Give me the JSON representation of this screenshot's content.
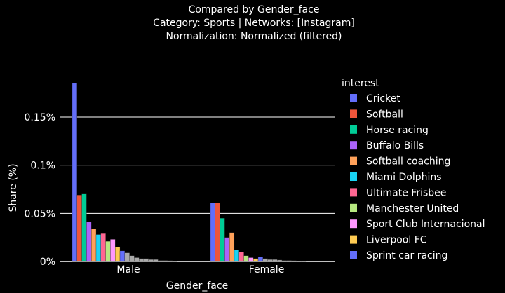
{
  "chart_data": {
    "type": "bar",
    "barmode": "group",
    "title": [
      "Compared by Gender_face",
      "Category: Sports | Networks: [Instagram]",
      "Normalization: Normalized (filtered)"
    ],
    "xlabel": "Gender_face",
    "ylabel": "Share (%)",
    "categories": [
      "Male",
      "Female"
    ],
    "ylim": [
      0,
      0.19
    ],
    "yticks": [
      0,
      0.05,
      0.1,
      0.15
    ],
    "ytick_labels": [
      "0%",
      "0.05%",
      "0.1%",
      "0.15%"
    ],
    "legend_title": "interest",
    "legend_position": "right",
    "grid": true,
    "series": [
      {
        "name": "Cricket",
        "color": "#636EFA",
        "values": [
          0.185,
          0.061
        ]
      },
      {
        "name": "Softball",
        "color": "#EF553B",
        "values": [
          0.069,
          0.061
        ]
      },
      {
        "name": "Horse racing",
        "color": "#00CC96",
        "values": [
          0.07,
          0.045
        ]
      },
      {
        "name": "Buffalo Bills",
        "color": "#AB63FA",
        "values": [
          0.041,
          0.025
        ]
      },
      {
        "name": "Softball coaching",
        "color": "#FFA15A",
        "values": [
          0.034,
          0.03
        ]
      },
      {
        "name": "Miami Dolphins",
        "color": "#19D3F3",
        "values": [
          0.028,
          0.012
        ]
      },
      {
        "name": "Ultimate Frisbee",
        "color": "#FF6692",
        "values": [
          0.029,
          0.01
        ]
      },
      {
        "name": "Manchester United",
        "color": "#B6E880",
        "values": [
          0.021,
          0.006
        ]
      },
      {
        "name": "Sport Club Internacional",
        "color": "#FF97FF",
        "values": [
          0.023,
          0.004
        ]
      },
      {
        "name": "Liverpool FC",
        "color": "#FECB52",
        "values": [
          0.015,
          0.003
        ]
      },
      {
        "name": "Sprint car racing",
        "color": "#636EFA",
        "values": [
          0.011,
          0.005
        ]
      }
    ],
    "trailing_bars": {
      "Male": [
        0.009,
        0.006,
        0.004,
        0.003,
        0.003,
        0.002,
        0.002,
        0.001,
        0.001,
        0.0008,
        0.0006
      ],
      "Female": [
        0.003,
        0.002,
        0.002,
        0.0015,
        0.001,
        0.001,
        0.0008,
        0.0006,
        0.0005
      ]
    }
  }
}
